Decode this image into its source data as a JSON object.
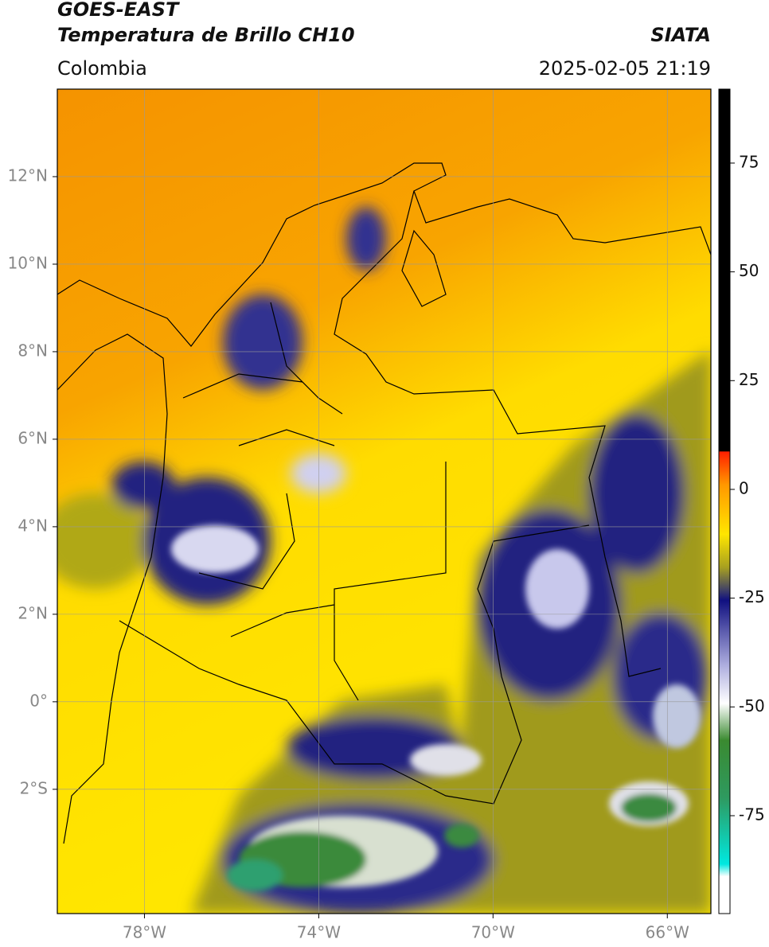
{
  "header": {
    "title": "GOES-EAST",
    "subtitle": "Temperatura de Brillo CH10",
    "region": "Colombia",
    "source": "SIATA",
    "datetime": "2025-02-05 21:19"
  },
  "map": {
    "xlim": [
      -80,
      -65
    ],
    "ylim": [
      -4.84,
      14
    ],
    "xticks": [
      {
        "value": -78,
        "label": "78°W"
      },
      {
        "value": -74,
        "label": "74°W"
      },
      {
        "value": -70,
        "label": "70°W"
      },
      {
        "value": -66,
        "label": "66°W"
      }
    ],
    "yticks": [
      {
        "value": 12,
        "label": "12°N"
      },
      {
        "value": 10,
        "label": "10°N"
      },
      {
        "value": 8,
        "label": "8°N"
      },
      {
        "value": 6,
        "label": "6°N"
      },
      {
        "value": 4,
        "label": "4°N"
      },
      {
        "value": 2,
        "label": "2°N"
      },
      {
        "value": 0,
        "label": "0°"
      },
      {
        "value": -2,
        "label": "2°S"
      }
    ],
    "grid": true
  },
  "colorbar": {
    "lim": [
      -97.5,
      92
    ],
    "ticks": [
      75,
      50,
      25,
      0,
      -25,
      -50,
      -75
    ]
  }
}
